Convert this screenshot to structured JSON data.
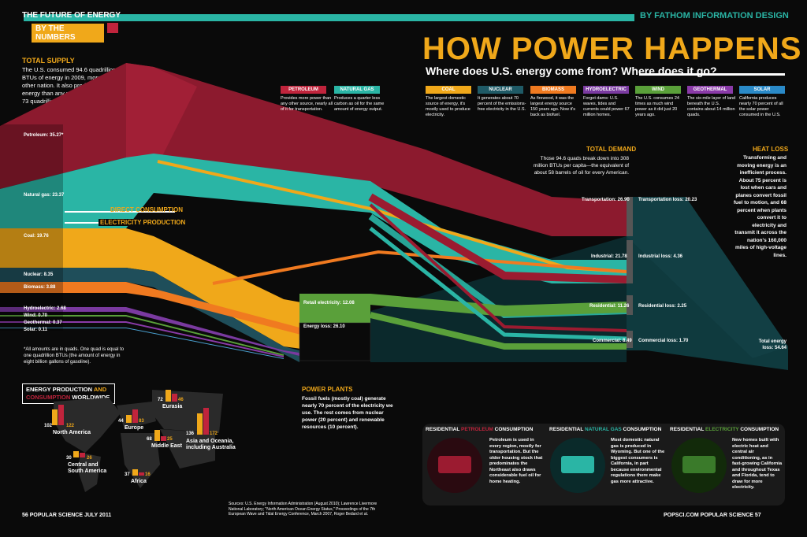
{
  "header": {
    "series": "THE FUTURE OF ENERGY",
    "section": "BY THE NUMBERS",
    "credit": "BY FATHOM INFORMATION DESIGN",
    "title": "HOW POWER HAPPENS",
    "subtitle": "Where does U.S. energy come from? Where does it go?"
  },
  "total_supply": {
    "title": "TOTAL SUPPLY",
    "text": "The U.S. consumed 94.6 quadrillion BTUs of energy in 2009, more than any other nation. It also produced more energy than any nation but China: some 73 quadrillion BTUs."
  },
  "sources": [
    {
      "label": "Petroleum: 35.27*",
      "color": "#9b1b30"
    },
    {
      "label": "Natural gas: 23.37",
      "color": "#2ab5a5"
    },
    {
      "label": "Coal: 19.76",
      "color": "#f0a81a"
    },
    {
      "label": "Nuclear: 8.35",
      "color": "#1f4e5a"
    },
    {
      "label": "Biomass: 3.88",
      "color": "#f07a20"
    },
    {
      "label": "Hydroelectric: 2.68",
      "color": "#7a3aa0"
    },
    {
      "label": "Wind: 0.70",
      "color": "#5aa03a"
    },
    {
      "label": "Geothermal: 0.37",
      "color": "#8a3aa8"
    },
    {
      "label": "Solar: 0.11",
      "color": "#4aa0d0"
    }
  ],
  "footnote": "*All amounts are in quads. One quad is equal to one quadrillion BTUs (the amount of energy in eight billion gallons of gasoline).",
  "flow_labels": {
    "direct": "DIRECT CONSUMPTION",
    "electricity": "ELECTRICITY PRODUCTION"
  },
  "legend": [
    {
      "name": "PETROLEUM",
      "color": "#c0243c",
      "desc": "Provides more power than any other source, nearly all of it for transportation."
    },
    {
      "name": "NATURAL GAS",
      "color": "#2ab5a5",
      "desc": "Produces a quarter less carbon as oil for the same amount of energy output."
    },
    {
      "name": "COAL",
      "color": "#f0a81a",
      "desc": "The largest domestic source of energy, it's mostly used to produce electricity."
    },
    {
      "name": "NUCLEAR",
      "color": "#1f5a66",
      "desc": "It generates about 70 percent of the emissions-free electricity in the U.S."
    },
    {
      "name": "BIOMASS",
      "color": "#f07a20",
      "desc": "As firewood, it was the largest energy source 150 years ago. Now it's back as biofuel."
    },
    {
      "name": "HYDROELECTRIC",
      "color": "#7a3aa0",
      "desc": "Forget dams: U.S. waves, tides and currents could power 67 million homes."
    },
    {
      "name": "WIND",
      "color": "#5aa03a",
      "desc": "The U.S. consumes 24 times as much wind power as it did just 20 years ago."
    },
    {
      "name": "GEOTHERMAL",
      "color": "#8a3aa8",
      "desc": "The six-mile layer of land beneath the U.S. contains about 14 million quads."
    },
    {
      "name": "SOLAR",
      "color": "#2a8ac8",
      "desc": "California produces nearly 70 percent of all the solar power consumed in the U.S."
    }
  ],
  "total_demand": {
    "title": "TOTAL DEMAND",
    "text": "Those 94.6 quads break down into 308 million BTUs per capita—the equivalent of about 58 barrels of oil for every American."
  },
  "demand": [
    {
      "label": "Transportation: 26.90"
    },
    {
      "label": "Industrial: 21.78"
    },
    {
      "label": "Residential: 11.26"
    },
    {
      "label": "Commercial: 8.49"
    }
  ],
  "losses": [
    {
      "label": "Transportation loss: 20.23"
    },
    {
      "label": "Industrial loss: 4.36"
    },
    {
      "label": "Residential loss: 2.25"
    },
    {
      "label": "Commercial loss: 1.70"
    }
  ],
  "retail": {
    "retail_label": "Retail electricity: 12.08",
    "loss_label": "Energy loss: 26.10"
  },
  "total_energy_loss": "Total energy loss: 54.64",
  "heat_loss": {
    "title": "HEAT LOSS",
    "text": "Transforming and moving energy is an inefficient process. About 75 percent is lost when cars and planes convert fossil fuel to motion, and 68 percent when plants convert it to electricity and transmit it across the nation's 160,000 miles of high-voltage lines."
  },
  "power_plants": {
    "title": "POWER PLANTS",
    "text": "Fossil fuels (mostly coal) generate nearly 70 percent of the electricity we use. The rest comes from nuclear power (20 percent) and renewable resources (10 percent)."
  },
  "world": {
    "title_a": "ENERGY PRODUCTION",
    "title_and": "AND",
    "title_b": "CONSUMPTION",
    "title_c": "WORLDWIDE",
    "regions": [
      {
        "name": "North America",
        "prod": "102",
        "cons": "122"
      },
      {
        "name": "Central and South America",
        "prod": "30",
        "cons": "26"
      },
      {
        "name": "Europe",
        "prod": "44",
        "cons": "83"
      },
      {
        "name": "Eurasia",
        "prod": "72",
        "cons": "46"
      },
      {
        "name": "Middle East",
        "prod": "68",
        "cons": "25"
      },
      {
        "name": "Africa",
        "prod": "37",
        "cons": "16"
      },
      {
        "name": "Asia and Oceania, including Australia",
        "prod": "136",
        "cons": "172"
      }
    ]
  },
  "residential": [
    {
      "prefix": "RESIDENTIAL ",
      "fuel": "PETROLEUM",
      "suffix": " CONSUMPTION",
      "color": "#c0243c",
      "text": "Petroleum is used in every region, mostly for transportation. But the older housing stock that predominates the Northeast also draws considerable fuel oil for home heating."
    },
    {
      "prefix": "RESIDENTIAL ",
      "fuel": "NATURAL GAS",
      "suffix": " CONSUMPTION",
      "color": "#2ab5a5",
      "text": "Most domestic natural gas is produced in Wyoming. But one of the biggest consumers is California, in part because environmental regulations there make gas more attractive."
    },
    {
      "prefix": "RESIDENTIAL ",
      "fuel": "ELECTRICITY",
      "suffix": " CONSUMPTION",
      "color": "#5aa03a",
      "text": "New homes built with electric heat and central air conditioning, as in fast-growing California and throughout Texas and Florida, tend to draw for more electricity."
    }
  ],
  "footer": {
    "left": "56  POPULAR SCIENCE  JULY 2011",
    "right": "POPSCI.COM  POPULAR SCIENCE  57",
    "sources": "Sources: U.S. Energy Information Administration (August 2010); Lawrence Livermore National Laboratory; \"North American Ocean Energy Status,\" Proceedings of the 7th European Wave and Tidal Energy Conference, March 2007, Roger Bedard et al."
  }
}
